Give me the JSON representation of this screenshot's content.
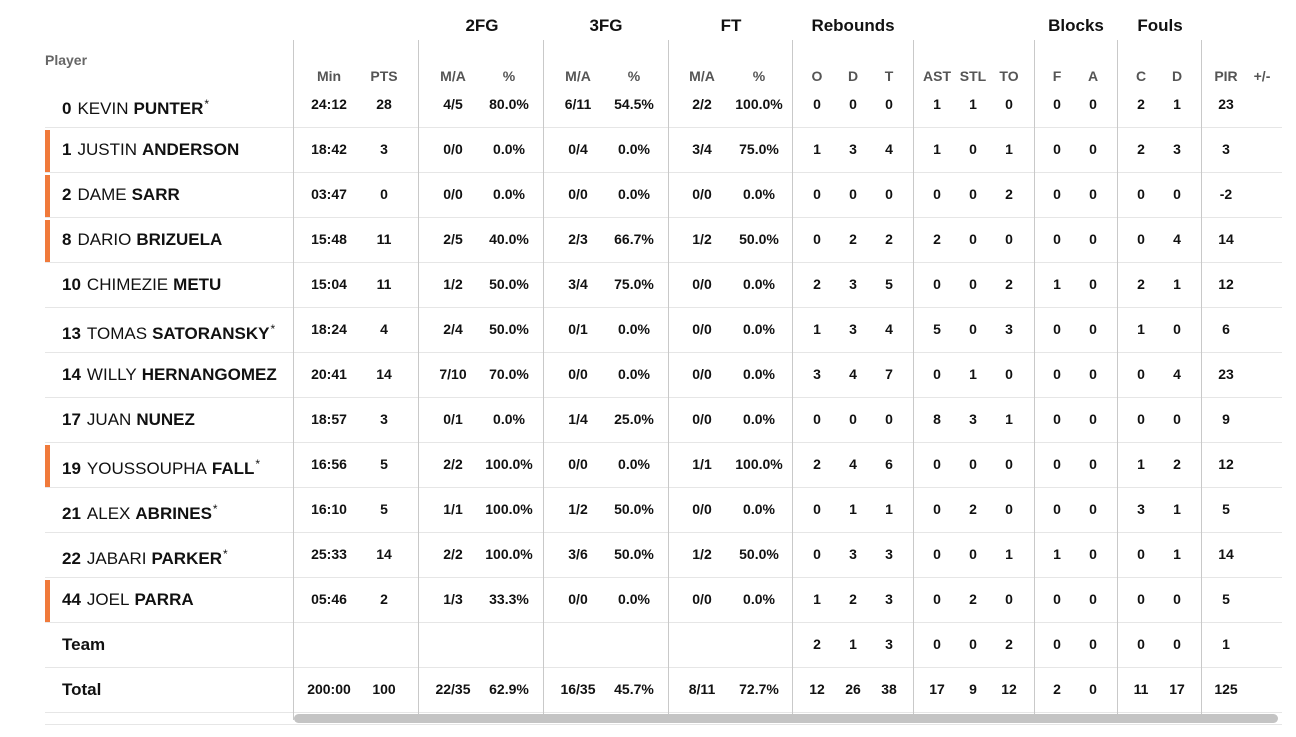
{
  "headers": {
    "player": "Player",
    "groups": {
      "fg2": "2FG",
      "fg3": "3FG",
      "ft": "FT",
      "rebounds": "Rebounds",
      "blocks": "Blocks",
      "fouls": "Fouls"
    },
    "columns": {
      "min": "Min",
      "pts": "PTS",
      "fg2_ma": "M/A",
      "fg2_pct": "%",
      "fg3_ma": "M/A",
      "fg3_pct": "%",
      "ft_ma": "M/A",
      "ft_pct": "%",
      "reb_o": "O",
      "reb_d": "D",
      "reb_t": "T",
      "ast": "AST",
      "stl": "STL",
      "to": "TO",
      "blk_f": "F",
      "blk_a": "A",
      "foul_c": "C",
      "foul_d": "D",
      "pir": "PIR",
      "pm": "+/-"
    }
  },
  "accent_color": "#f07a3b",
  "players": [
    {
      "number": "0",
      "first": "KEVIN",
      "last": "PUNTER",
      "starter": true,
      "highlight": false,
      "stats": {
        "min": "24:12",
        "pts": "28",
        "fg2_ma": "4/5",
        "fg2_pct": "80.0%",
        "fg3_ma": "6/11",
        "fg3_pct": "54.5%",
        "ft_ma": "2/2",
        "ft_pct": "100.0%",
        "reb_o": "0",
        "reb_d": "0",
        "reb_t": "0",
        "ast": "1",
        "stl": "1",
        "to": "0",
        "blk_f": "0",
        "blk_a": "0",
        "foul_c": "2",
        "foul_d": "1",
        "pir": "23",
        "pm": ""
      }
    },
    {
      "number": "1",
      "first": "JUSTIN",
      "last": "ANDERSON",
      "starter": false,
      "highlight": true,
      "stats": {
        "min": "18:42",
        "pts": "3",
        "fg2_ma": "0/0",
        "fg2_pct": "0.0%",
        "fg3_ma": "0/4",
        "fg3_pct": "0.0%",
        "ft_ma": "3/4",
        "ft_pct": "75.0%",
        "reb_o": "1",
        "reb_d": "3",
        "reb_t": "4",
        "ast": "1",
        "stl": "0",
        "to": "1",
        "blk_f": "0",
        "blk_a": "0",
        "foul_c": "2",
        "foul_d": "3",
        "pir": "3",
        "pm": ""
      }
    },
    {
      "number": "2",
      "first": "DAME",
      "last": "SARR",
      "starter": false,
      "highlight": true,
      "stats": {
        "min": "03:47",
        "pts": "0",
        "fg2_ma": "0/0",
        "fg2_pct": "0.0%",
        "fg3_ma": "0/0",
        "fg3_pct": "0.0%",
        "ft_ma": "0/0",
        "ft_pct": "0.0%",
        "reb_o": "0",
        "reb_d": "0",
        "reb_t": "0",
        "ast": "0",
        "stl": "0",
        "to": "2",
        "blk_f": "0",
        "blk_a": "0",
        "foul_c": "0",
        "foul_d": "0",
        "pir": "-2",
        "pm": ""
      }
    },
    {
      "number": "8",
      "first": "DARIO",
      "last": "BRIZUELA",
      "starter": false,
      "highlight": true,
      "stats": {
        "min": "15:48",
        "pts": "11",
        "fg2_ma": "2/5",
        "fg2_pct": "40.0%",
        "fg3_ma": "2/3",
        "fg3_pct": "66.7%",
        "ft_ma": "1/2",
        "ft_pct": "50.0%",
        "reb_o": "0",
        "reb_d": "2",
        "reb_t": "2",
        "ast": "2",
        "stl": "0",
        "to": "0",
        "blk_f": "0",
        "blk_a": "0",
        "foul_c": "0",
        "foul_d": "4",
        "pir": "14",
        "pm": ""
      }
    },
    {
      "number": "10",
      "first": "CHIMEZIE",
      "last": "METU",
      "starter": false,
      "highlight": false,
      "stats": {
        "min": "15:04",
        "pts": "11",
        "fg2_ma": "1/2",
        "fg2_pct": "50.0%",
        "fg3_ma": "3/4",
        "fg3_pct": "75.0%",
        "ft_ma": "0/0",
        "ft_pct": "0.0%",
        "reb_o": "2",
        "reb_d": "3",
        "reb_t": "5",
        "ast": "0",
        "stl": "0",
        "to": "2",
        "blk_f": "1",
        "blk_a": "0",
        "foul_c": "2",
        "foul_d": "1",
        "pir": "12",
        "pm": ""
      }
    },
    {
      "number": "13",
      "first": "TOMAS",
      "last": "SATORANSKY",
      "starter": true,
      "highlight": false,
      "stats": {
        "min": "18:24",
        "pts": "4",
        "fg2_ma": "2/4",
        "fg2_pct": "50.0%",
        "fg3_ma": "0/1",
        "fg3_pct": "0.0%",
        "ft_ma": "0/0",
        "ft_pct": "0.0%",
        "reb_o": "1",
        "reb_d": "3",
        "reb_t": "4",
        "ast": "5",
        "stl": "0",
        "to": "3",
        "blk_f": "0",
        "blk_a": "0",
        "foul_c": "1",
        "foul_d": "0",
        "pir": "6",
        "pm": ""
      }
    },
    {
      "number": "14",
      "first": "WILLY",
      "last": "HERNANGOMEZ",
      "starter": false,
      "highlight": false,
      "stats": {
        "min": "20:41",
        "pts": "14",
        "fg2_ma": "7/10",
        "fg2_pct": "70.0%",
        "fg3_ma": "0/0",
        "fg3_pct": "0.0%",
        "ft_ma": "0/0",
        "ft_pct": "0.0%",
        "reb_o": "3",
        "reb_d": "4",
        "reb_t": "7",
        "ast": "0",
        "stl": "1",
        "to": "0",
        "blk_f": "0",
        "blk_a": "0",
        "foul_c": "0",
        "foul_d": "4",
        "pir": "23",
        "pm": ""
      }
    },
    {
      "number": "17",
      "first": "JUAN",
      "last": "NUNEZ",
      "starter": false,
      "highlight": false,
      "stats": {
        "min": "18:57",
        "pts": "3",
        "fg2_ma": "0/1",
        "fg2_pct": "0.0%",
        "fg3_ma": "1/4",
        "fg3_pct": "25.0%",
        "ft_ma": "0/0",
        "ft_pct": "0.0%",
        "reb_o": "0",
        "reb_d": "0",
        "reb_t": "0",
        "ast": "8",
        "stl": "3",
        "to": "1",
        "blk_f": "0",
        "blk_a": "0",
        "foul_c": "0",
        "foul_d": "0",
        "pir": "9",
        "pm": ""
      }
    },
    {
      "number": "19",
      "first": "YOUSSOUPHA",
      "last": "FALL",
      "starter": true,
      "highlight": true,
      "stats": {
        "min": "16:56",
        "pts": "5",
        "fg2_ma": "2/2",
        "fg2_pct": "100.0%",
        "fg3_ma": "0/0",
        "fg3_pct": "0.0%",
        "ft_ma": "1/1",
        "ft_pct": "100.0%",
        "reb_o": "2",
        "reb_d": "4",
        "reb_t": "6",
        "ast": "0",
        "stl": "0",
        "to": "0",
        "blk_f": "0",
        "blk_a": "0",
        "foul_c": "1",
        "foul_d": "2",
        "pir": "12",
        "pm": ""
      }
    },
    {
      "number": "21",
      "first": "ALEX",
      "last": "ABRINES",
      "starter": true,
      "highlight": false,
      "stats": {
        "min": "16:10",
        "pts": "5",
        "fg2_ma": "1/1",
        "fg2_pct": "100.0%",
        "fg3_ma": "1/2",
        "fg3_pct": "50.0%",
        "ft_ma": "0/0",
        "ft_pct": "0.0%",
        "reb_o": "0",
        "reb_d": "1",
        "reb_t": "1",
        "ast": "0",
        "stl": "2",
        "to": "0",
        "blk_f": "0",
        "blk_a": "0",
        "foul_c": "3",
        "foul_d": "1",
        "pir": "5",
        "pm": ""
      }
    },
    {
      "number": "22",
      "first": "JABARI",
      "last": "PARKER",
      "starter": true,
      "highlight": false,
      "stats": {
        "min": "25:33",
        "pts": "14",
        "fg2_ma": "2/2",
        "fg2_pct": "100.0%",
        "fg3_ma": "3/6",
        "fg3_pct": "50.0%",
        "ft_ma": "1/2",
        "ft_pct": "50.0%",
        "reb_o": "0",
        "reb_d": "3",
        "reb_t": "3",
        "ast": "0",
        "stl": "0",
        "to": "1",
        "blk_f": "1",
        "blk_a": "0",
        "foul_c": "0",
        "foul_d": "1",
        "pir": "14",
        "pm": ""
      }
    },
    {
      "number": "44",
      "first": "JOEL",
      "last": "PARRA",
      "starter": false,
      "highlight": true,
      "stats": {
        "min": "05:46",
        "pts": "2",
        "fg2_ma": "1/3",
        "fg2_pct": "33.3%",
        "fg3_ma": "0/0",
        "fg3_pct": "0.0%",
        "ft_ma": "0/0",
        "ft_pct": "0.0%",
        "reb_o": "1",
        "reb_d": "2",
        "reb_t": "3",
        "ast": "0",
        "stl": "2",
        "to": "0",
        "blk_f": "0",
        "blk_a": "0",
        "foul_c": "0",
        "foul_d": "0",
        "pir": "5",
        "pm": ""
      }
    }
  ],
  "team_row": {
    "label": "Team",
    "stats": {
      "min": "",
      "pts": "",
      "fg2_ma": "",
      "fg2_pct": "",
      "fg3_ma": "",
      "fg3_pct": "",
      "ft_ma": "",
      "ft_pct": "",
      "reb_o": "2",
      "reb_d": "1",
      "reb_t": "3",
      "ast": "0",
      "stl": "0",
      "to": "2",
      "blk_f": "0",
      "blk_a": "0",
      "foul_c": "0",
      "foul_d": "0",
      "pir": "1",
      "pm": ""
    }
  },
  "total_row": {
    "label": "Total",
    "stats": {
      "min": "200:00",
      "pts": "100",
      "fg2_ma": "22/35",
      "fg2_pct": "62.9%",
      "fg3_ma": "16/35",
      "fg3_pct": "45.7%",
      "ft_ma": "8/11",
      "ft_pct": "72.7%",
      "reb_o": "12",
      "reb_d": "26",
      "reb_t": "38",
      "ast": "17",
      "stl": "9",
      "to": "12",
      "blk_f": "2",
      "blk_a": "0",
      "foul_c": "11",
      "foul_d": "17",
      "pir": "125",
      "pm": ""
    }
  }
}
